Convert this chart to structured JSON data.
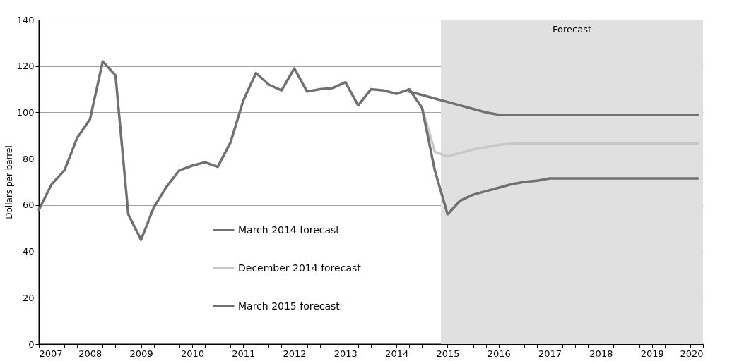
{
  "chart_data": {
    "type": "line",
    "ylabel": "Dollars per barrel",
    "xlim": [
      2007,
      2020
    ],
    "ylim": [
      0,
      140
    ],
    "yticks": [
      0,
      20,
      40,
      60,
      80,
      100,
      120,
      140
    ],
    "xticks": [
      2007,
      {
        "value": 2007.25,
        "label": null
      },
      {
        "value": 2007.5,
        "label": null
      },
      {
        "value": 2007.75,
        "label": null
      },
      2008,
      {
        "value": 2008.25,
        "label": null
      },
      {
        "value": 2008.5,
        "label": null
      },
      {
        "value": 2008.75,
        "label": null
      },
      2009,
      {
        "value": 2009.25,
        "label": null
      },
      {
        "value": 2009.5,
        "label": null
      },
      {
        "value": 2009.75,
        "label": null
      },
      2010,
      {
        "value": 2010.25,
        "label": null
      },
      {
        "value": 2010.5,
        "label": null
      },
      {
        "value": 2010.75,
        "label": null
      },
      2011,
      {
        "value": 2011.25,
        "label": null
      },
      {
        "value": 2011.5,
        "label": null
      },
      {
        "value": 2011.75,
        "label": null
      },
      2012,
      {
        "value": 2012.25,
        "label": null
      },
      {
        "value": 2012.5,
        "label": null
      },
      {
        "value": 2012.75,
        "label": null
      },
      2013,
      {
        "value": 2013.25,
        "label": null
      },
      {
        "value": 2013.5,
        "label": null
      },
      {
        "value": 2013.75,
        "label": null
      },
      2014,
      {
        "value": 2014.25,
        "label": null
      },
      {
        "value": 2014.5,
        "label": null
      },
      {
        "value": 2014.75,
        "label": null
      },
      2015,
      {
        "value": 2015.25,
        "label": null
      },
      {
        "value": 2015.5,
        "label": null
      },
      {
        "value": 2015.75,
        "label": null
      },
      2016,
      {
        "value": 2016.25,
        "label": null
      },
      {
        "value": 2016.5,
        "label": null
      },
      {
        "value": 2016.75,
        "label": null
      },
      2017,
      {
        "value": 2017.25,
        "label": null
      },
      {
        "value": 2017.5,
        "label": null
      },
      {
        "value": 2017.75,
        "label": null
      },
      2018,
      {
        "value": 2018.25,
        "label": null
      },
      {
        "value": 2018.5,
        "label": null
      },
      {
        "value": 2018.75,
        "label": null
      },
      2019,
      {
        "value": 2019.25,
        "label": null
      },
      {
        "value": 2019.5,
        "label": null
      },
      {
        "value": 2019.75,
        "label": null
      },
      2020
    ],
    "grid": "y",
    "legend": "bottom left",
    "line_style": "solid",
    "marker": "none",
    "bands": [
      {
        "axis": "x",
        "from": 2014.87,
        "to": 2020,
        "label": "Forecast",
        "color": "#e0e0e0"
      }
    ],
    "series": [
      {
        "name": "March 2014 forecast",
        "color": "#707070",
        "x": [
          2014.25,
          2014.5,
          2014.75,
          2015,
          2015.25,
          2015.5,
          2015.75,
          2016,
          2017,
          2018,
          2019,
          2019.9
        ],
        "values": [
          109,
          107.5,
          106,
          104.5,
          103,
          101.5,
          100,
          99,
          99,
          99,
          99,
          99
        ]
      },
      {
        "name": "December 2014 forecast",
        "color": "#c8c8c8",
        "x": [
          2014.5,
          2014.75,
          2015,
          2015.25,
          2015.5,
          2015.75,
          2016,
          2016.25,
          2017,
          2018,
          2019,
          2019.9
        ],
        "values": [
          102,
          83,
          81,
          82.5,
          84,
          85,
          86,
          86.5,
          86.5,
          86.5,
          86.5,
          86.5
        ]
      },
      {
        "name": "March 2015 forecast",
        "color": "#707070",
        "x": [
          2007,
          2007.25,
          2007.5,
          2007.75,
          2008,
          2008.25,
          2008.5,
          2008.75,
          2009,
          2009.25,
          2009.5,
          2009.75,
          2010,
          2010.25,
          2010.5,
          2010.75,
          2011,
          2011.25,
          2011.5,
          2011.75,
          2012,
          2012.25,
          2012.5,
          2012.75,
          2013,
          2013.25,
          2013.5,
          2013.75,
          2014,
          2014.25,
          2014.5,
          2014.75,
          2015,
          2015.25,
          2015.5,
          2015.75,
          2016,
          2016.25,
          2016.5,
          2016.75,
          2017,
          2018,
          2019,
          2019.9
        ],
        "values": [
          58,
          69,
          75,
          89,
          97,
          122,
          116,
          56,
          45,
          59,
          68,
          75,
          77,
          78.5,
          76.5,
          87,
          105,
          117,
          112,
          109.5,
          119,
          109,
          110,
          110.5,
          113,
          103,
          110,
          109.5,
          108,
          110,
          102,
          75,
          56,
          62,
          64.5,
          66,
          67.5,
          69,
          70,
          70.5,
          71.5,
          71.5,
          71.5,
          71.5
        ]
      }
    ]
  }
}
